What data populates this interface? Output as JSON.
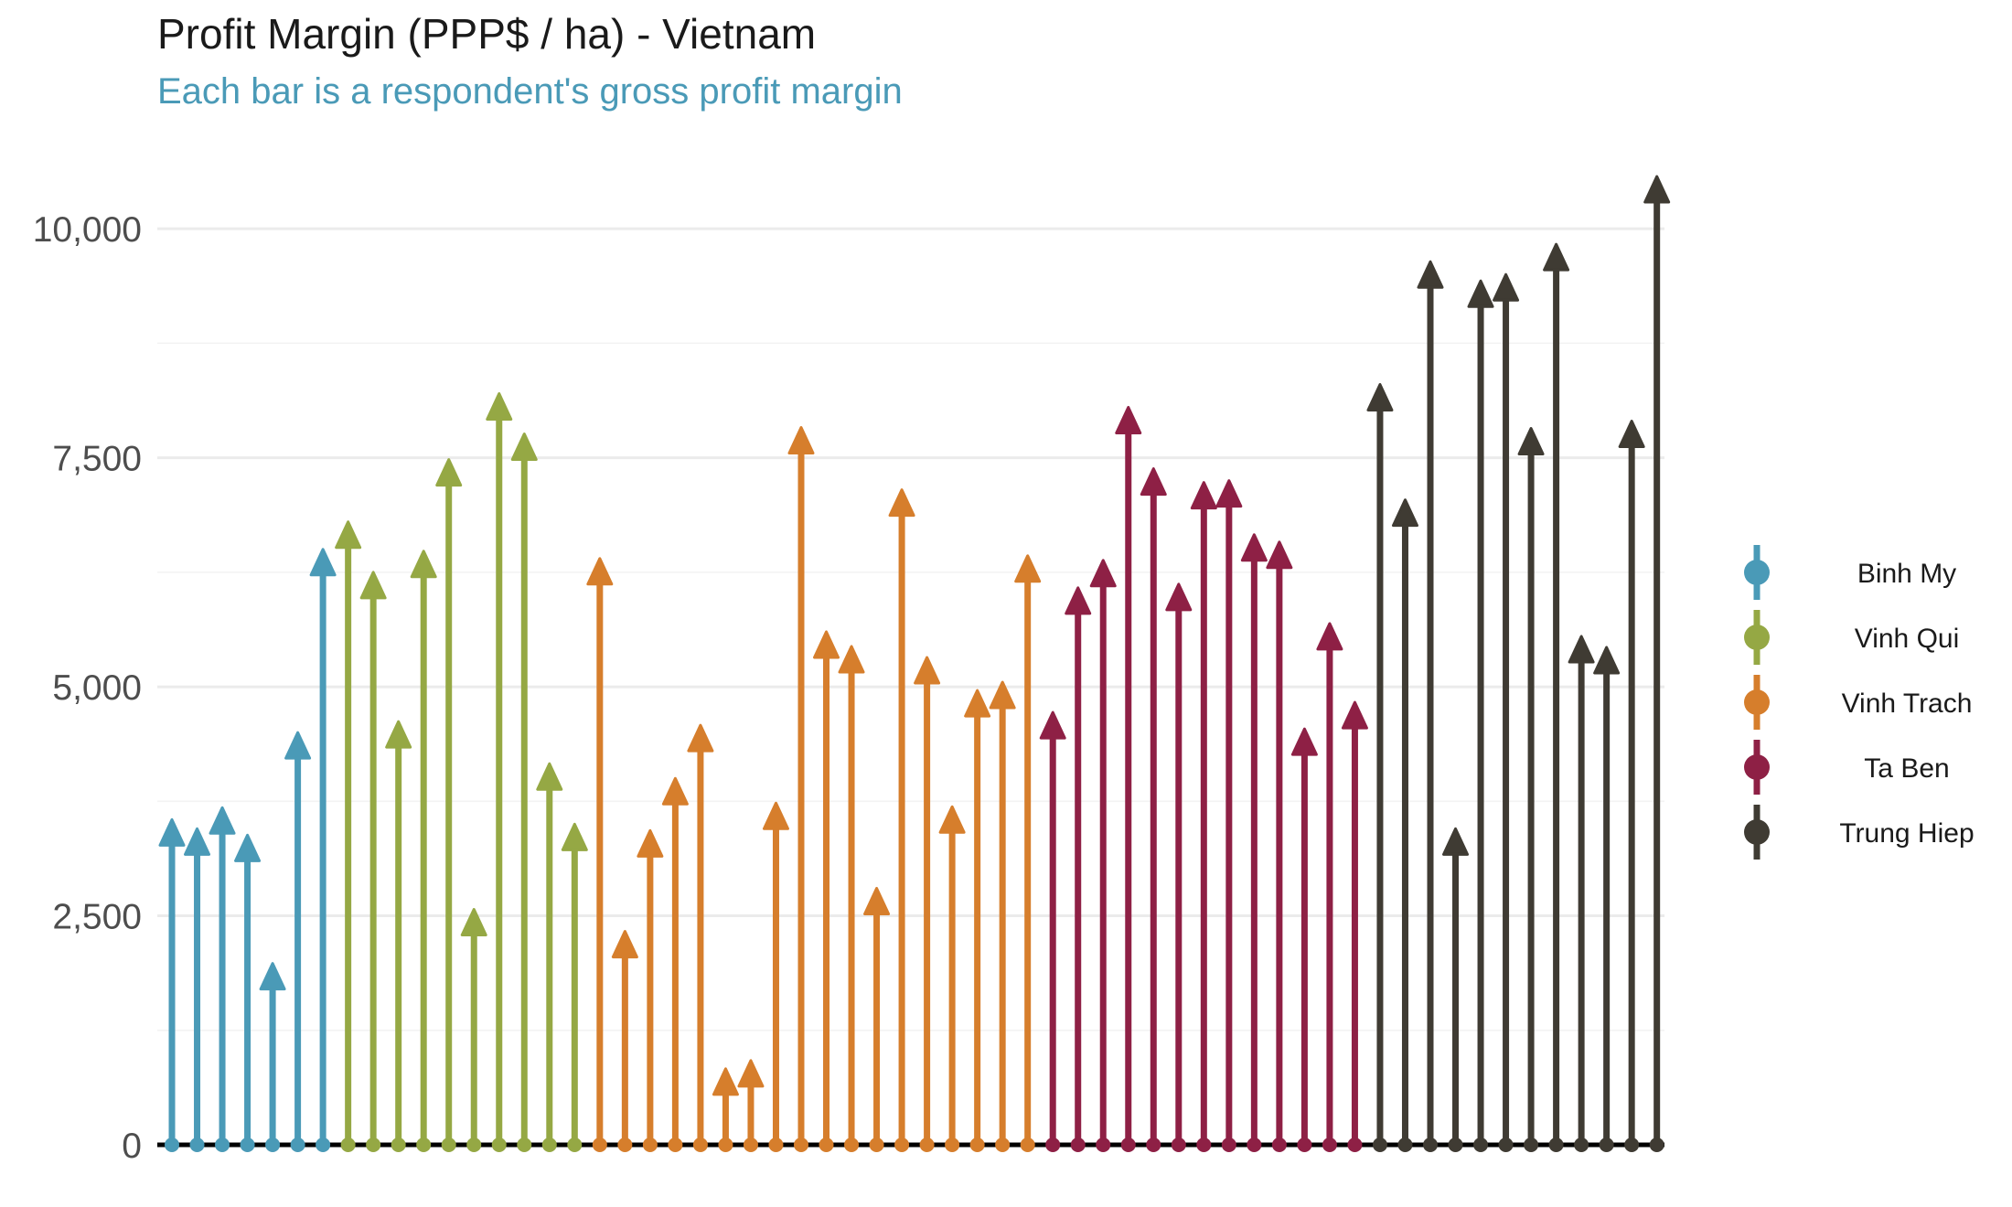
{
  "chart_data": {
    "type": "bar",
    "title": "Profit Margin (PPP$ / ha) - Vietnam",
    "subtitle": "Each bar is a respondent's gross profit margin",
    "xlabel": "",
    "ylabel": "",
    "ylim": [
      0,
      10700
    ],
    "y_ticks": [
      0,
      2500,
      5000,
      7500,
      10000
    ],
    "y_tick_labels": [
      "0",
      "2,500",
      "5,000",
      "7,500",
      "10,000"
    ],
    "grid": true,
    "legend_position": "right",
    "series": [
      {
        "name": "Binh My",
        "color": "#4a9ab7",
        "values": [
          3550,
          3450,
          3680,
          3380,
          1980,
          4500,
          6500
        ]
      },
      {
        "name": "Vinh Qui",
        "color": "#95a844",
        "values": [
          6800,
          6250,
          4620,
          6480,
          7480,
          2570,
          8200,
          7760,
          4160,
          3500
        ]
      },
      {
        "name": "Vinh Trach",
        "color": "#d67e2c",
        "values": [
          6400,
          2330,
          3430,
          4000,
          4580,
          830,
          920,
          3730,
          7830,
          5600,
          5440,
          2800,
          7150,
          5320,
          3690,
          4960,
          5050,
          6430
        ]
      },
      {
        "name": "Ta Ben",
        "color": "#8e2045",
        "values": [
          4720,
          6080,
          6380,
          8050,
          7380,
          6120,
          7230,
          7250,
          6660,
          6580,
          4540,
          5690,
          4830
        ]
      },
      {
        "name": "Trung Hiep",
        "color": "#3f3b33",
        "values": [
          8300,
          7040,
          9640,
          3450,
          9430,
          9500,
          7820,
          9830,
          5550,
          5430,
          7900,
          10570
        ]
      }
    ]
  }
}
